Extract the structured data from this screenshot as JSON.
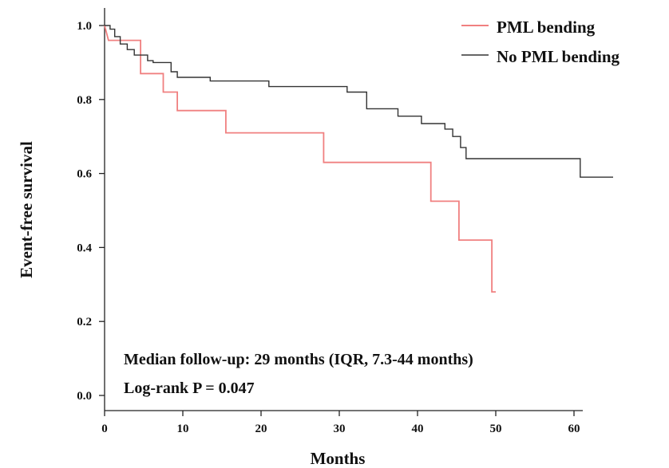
{
  "chart_data": {
    "type": "line",
    "step": true,
    "title": "",
    "xlabel": "Months",
    "ylabel": "Event-free survival",
    "xlim": [
      0,
      66
    ],
    "ylim": [
      -0.04,
      1.03
    ],
    "x_ticks": [
      0,
      10,
      20,
      30,
      40,
      50,
      60
    ],
    "y_ticks": [
      0.0,
      0.2,
      0.4,
      0.6,
      0.8,
      1.0
    ],
    "x_tick_labels": [
      "0",
      "10",
      "20",
      "30",
      "40",
      "50",
      "60"
    ],
    "y_tick_labels": [
      "0.0",
      "0.2",
      "0.4",
      "0.6",
      "0.8",
      "1.0"
    ],
    "grid": false,
    "legend_position": "top-right",
    "series": [
      {
        "name": "PML bending",
        "color": "#f08080",
        "points": [
          [
            0,
            1.0
          ],
          [
            0.5,
            0.96
          ],
          [
            2,
            0.96
          ],
          [
            4.6,
            0.96
          ],
          [
            4.6,
            0.87
          ],
          [
            7.5,
            0.87
          ],
          [
            7.5,
            0.82
          ],
          [
            9.3,
            0.82
          ],
          [
            9.3,
            0.77
          ],
          [
            15.5,
            0.77
          ],
          [
            15.5,
            0.71
          ],
          [
            28,
            0.71
          ],
          [
            28,
            0.63
          ],
          [
            41.7,
            0.63
          ],
          [
            41.7,
            0.525
          ],
          [
            45.3,
            0.525
          ],
          [
            45.3,
            0.42
          ],
          [
            49.5,
            0.42
          ],
          [
            49.5,
            0.28
          ],
          [
            50,
            0.28
          ]
        ]
      },
      {
        "name": "No PML bending",
        "color": "#333333",
        "points": [
          [
            0,
            1.0
          ],
          [
            0.7,
            1.0
          ],
          [
            0.7,
            0.99
          ],
          [
            1.3,
            0.99
          ],
          [
            1.3,
            0.97
          ],
          [
            2,
            0.97
          ],
          [
            2,
            0.95
          ],
          [
            2.9,
            0.95
          ],
          [
            2.9,
            0.935
          ],
          [
            3.8,
            0.935
          ],
          [
            3.8,
            0.92
          ],
          [
            5.5,
            0.92
          ],
          [
            5.5,
            0.905
          ],
          [
            6.2,
            0.905
          ],
          [
            6.2,
            0.9
          ],
          [
            8.5,
            0.9
          ],
          [
            8.5,
            0.875
          ],
          [
            9.3,
            0.875
          ],
          [
            9.3,
            0.86
          ],
          [
            13.5,
            0.86
          ],
          [
            13.5,
            0.85
          ],
          [
            21,
            0.85
          ],
          [
            21,
            0.835
          ],
          [
            31,
            0.835
          ],
          [
            31,
            0.82
          ],
          [
            33.5,
            0.82
          ],
          [
            33.5,
            0.775
          ],
          [
            37.5,
            0.775
          ],
          [
            37.5,
            0.755
          ],
          [
            40.5,
            0.755
          ],
          [
            40.5,
            0.735
          ],
          [
            43.5,
            0.735
          ],
          [
            43.5,
            0.72
          ],
          [
            44.5,
            0.72
          ],
          [
            44.5,
            0.7
          ],
          [
            45.5,
            0.7
          ],
          [
            45.5,
            0.67
          ],
          [
            46.2,
            0.67
          ],
          [
            46.2,
            0.64
          ],
          [
            60.8,
            0.64
          ],
          [
            60.8,
            0.59
          ],
          [
            65,
            0.59
          ]
        ]
      }
    ],
    "annotations": [
      "Median follow-up: 29 months (IQR, 7.3-44 months)",
      "Log-rank P = 0.047"
    ]
  }
}
